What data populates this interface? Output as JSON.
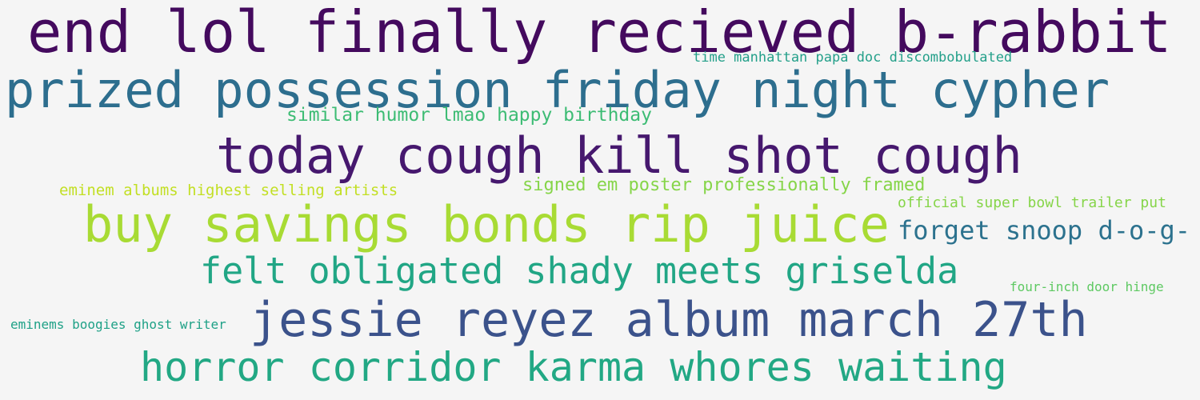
{
  "phrases": [
    {
      "text": "end lol finally recieved b-rabbit",
      "color": "#440a5e"
    },
    {
      "text": "time manhattan papa doc discombobulated",
      "color": "#24a08a"
    },
    {
      "text": "prized possession friday night cypher",
      "color": "#2d6e8e"
    },
    {
      "text": "similar humor lmao happy birthday",
      "color": "#3dbc74"
    },
    {
      "text": "today cough kill shot cough",
      "color": "#46186e"
    },
    {
      "text": "eminem albums highest selling artists",
      "color": "#c2df23"
    },
    {
      "text": "signed em poster professionally framed",
      "color": "#86d549"
    },
    {
      "text": "official super bowl trailer put",
      "color": "#86d549"
    },
    {
      "text": "buy savings bonds rip juice",
      "color": "#a8db34"
    },
    {
      "text": "forget snoop d-o-g-",
      "color": "#2c728e"
    },
    {
      "text": "felt obligated shady meets griselda",
      "color": "#21a685"
    },
    {
      "text": "four-inch door hinge",
      "color": "#5ec962"
    },
    {
      "text": "eminems boogies ghost writer",
      "color": "#1fa187"
    },
    {
      "text": "jessie reyez album march 27th",
      "color": "#3b528b"
    },
    {
      "text": "horror corridor karma whores waiting",
      "color": "#22a884"
    }
  ]
}
